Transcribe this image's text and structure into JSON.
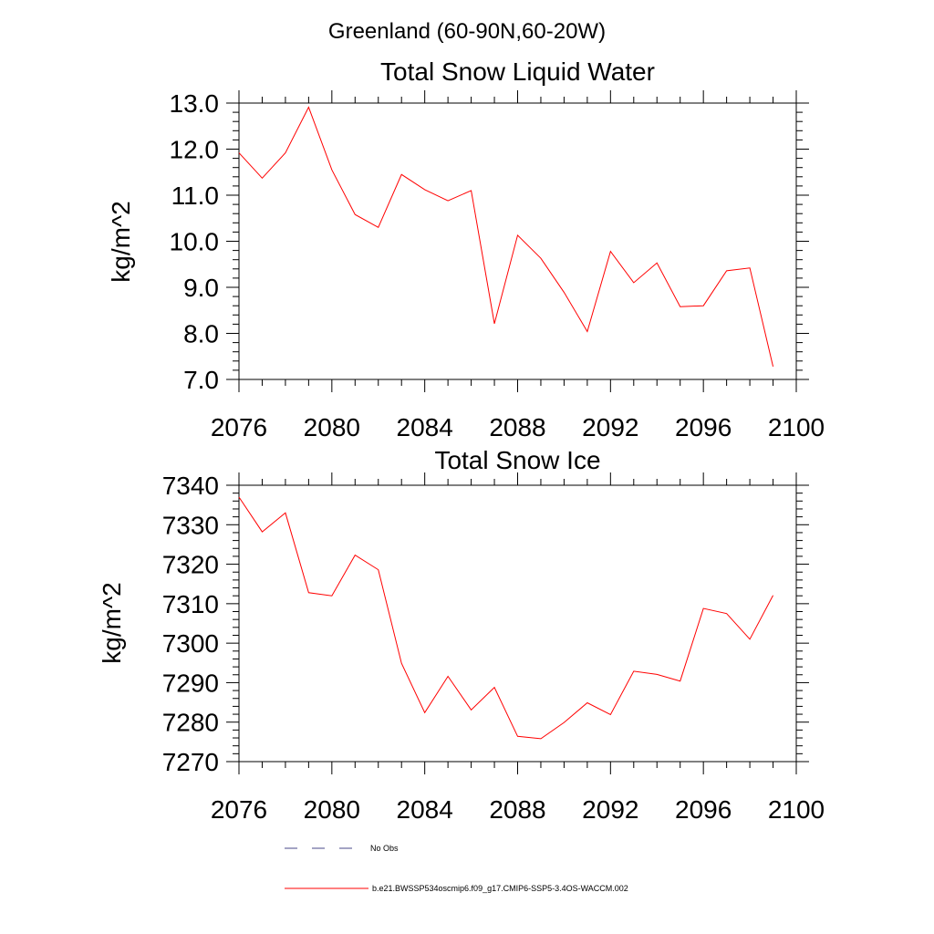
{
  "page": {
    "title": "Greenland (60-90N,60-20W)"
  },
  "chart_data": [
    {
      "type": "line",
      "title": "Total Snow Liquid Water",
      "xlabel": "",
      "ylabel": "kg/m^2",
      "xlim": [
        2076,
        2100
      ],
      "ylim": [
        7.0,
        13.0
      ],
      "grid": false,
      "x_ticks": [
        "2076",
        "2080",
        "2084",
        "2088",
        "2092",
        "2096",
        "2100"
      ],
      "y_ticks": [
        "7.0",
        "8.0",
        "9.0",
        "10.0",
        "11.0",
        "12.0",
        "13.0"
      ],
      "x": [
        2076,
        2077,
        2078,
        2079,
        2080,
        2081,
        2082,
        2083,
        2084,
        2085,
        2086,
        2087,
        2088,
        2089,
        2090,
        2091,
        2092,
        2093,
        2094,
        2095,
        2096,
        2097,
        2098,
        2099
      ],
      "series": [
        {
          "name": "b.e21.BWSSP534oscmip6.f09_g17.CMIP6-SSP5-3.4OS-WACCM.002",
          "color": "#ff0000",
          "values": [
            11.92,
            11.37,
            11.92,
            12.91,
            11.55,
            10.58,
            10.3,
            11.45,
            11.12,
            10.88,
            11.1,
            8.21,
            10.13,
            9.63,
            8.89,
            8.04,
            9.78,
            9.1,
            9.53,
            8.58,
            8.6,
            9.36,
            9.42,
            7.28
          ]
        }
      ]
    },
    {
      "type": "line",
      "title": "Total Snow Ice",
      "xlabel": "",
      "ylabel": "kg/m^2",
      "xlim": [
        2076,
        2100
      ],
      "ylim": [
        7270,
        7340
      ],
      "grid": false,
      "x_ticks": [
        "2076",
        "2080",
        "2084",
        "2088",
        "2092",
        "2096",
        "2100"
      ],
      "y_ticks": [
        "7270",
        "7280",
        "7290",
        "7300",
        "7310",
        "7320",
        "7330",
        "7340"
      ],
      "x": [
        2076,
        2077,
        2078,
        2079,
        2080,
        2081,
        2082,
        2083,
        2084,
        2085,
        2086,
        2087,
        2088,
        2089,
        2090,
        2091,
        2092,
        2093,
        2094,
        2095,
        2096,
        2097,
        2098,
        2099
      ],
      "series": [
        {
          "name": "b.e21.BWSSP534oscmip6.f09_g17.CMIP6-SSP5-3.4OS-WACCM.002",
          "color": "#ff0000",
          "values": [
            7337.0,
            7328.2,
            7333.0,
            7312.8,
            7312.0,
            7322.3,
            7318.6,
            7294.9,
            7282.4,
            7291.6,
            7283.1,
            7288.8,
            7276.4,
            7275.8,
            7279.9,
            7284.9,
            7281.9,
            7292.9,
            7292.1,
            7290.4,
            7308.8,
            7307.5,
            7301.0,
            7312.1
          ]
        }
      ]
    }
  ],
  "legend": {
    "placement": "bottom",
    "items": [
      {
        "label": "No Obs",
        "style": "dashed",
        "color": "#4a4a8a"
      },
      {
        "label": "b.e21.BWSSP534oscmip6.f09_g17.CMIP6-SSP5-3.4OS-WACCM.002",
        "style": "solid",
        "color": "#ff0000"
      }
    ]
  }
}
